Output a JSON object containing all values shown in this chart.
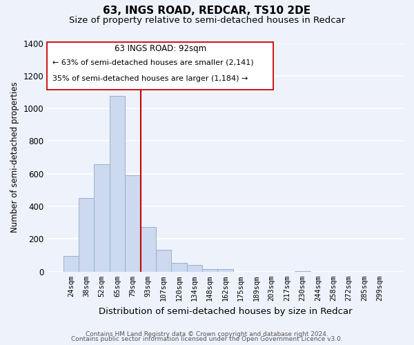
{
  "title": "63, INGS ROAD, REDCAR, TS10 2DE",
  "subtitle": "Size of property relative to semi-detached houses in Redcar",
  "xlabel": "Distribution of semi-detached houses by size in Redcar",
  "ylabel": "Number of semi-detached properties",
  "bar_labels": [
    "24sqm",
    "38sqm",
    "52sqm",
    "65sqm",
    "79sqm",
    "93sqm",
    "107sqm",
    "120sqm",
    "134sqm",
    "148sqm",
    "162sqm",
    "175sqm",
    "189sqm",
    "203sqm",
    "217sqm",
    "230sqm",
    "244sqm",
    "258sqm",
    "272sqm",
    "285sqm",
    "299sqm"
  ],
  "bar_values": [
    95,
    450,
    660,
    1075,
    590,
    275,
    135,
    55,
    40,
    18,
    15,
    0,
    0,
    0,
    0,
    5,
    0,
    0,
    0,
    0,
    0
  ],
  "bar_color": "#ccd9ee",
  "bar_edge_color": "#9ab0d0",
  "property_line_index": 4.5,
  "pct_smaller": 63,
  "count_smaller": 2141,
  "pct_larger": 35,
  "count_larger": 1184,
  "annotation_box_label": "63 INGS ROAD: 92sqm",
  "line_color": "#cc0000",
  "ylim": [
    0,
    1400
  ],
  "yticks": [
    0,
    200,
    400,
    600,
    800,
    1000,
    1200,
    1400
  ],
  "footer1": "Contains HM Land Registry data © Crown copyright and database right 2024.",
  "footer2": "Contains public sector information licensed under the Open Government Licence v3.0.",
  "bg_color": "#eef2fa",
  "grid_color": "#ffffff",
  "title_fontsize": 11,
  "subtitle_fontsize": 9.5
}
